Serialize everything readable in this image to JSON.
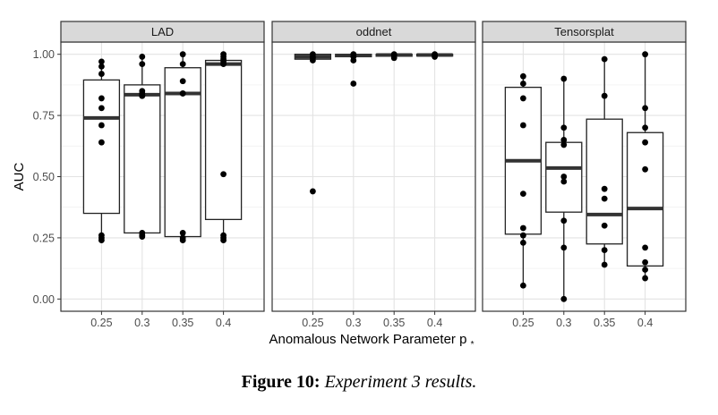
{
  "chart_data": {
    "type": "box",
    "ylabel": "AUC",
    "xlabel": "Anomalous Network Parameter p",
    "xlabel_subscript": "*",
    "categories": [
      "0.25",
      "0.3",
      "0.35",
      "0.4"
    ],
    "ylim": [
      -0.05,
      1.05
    ],
    "yticks": [
      0.0,
      0.25,
      0.5,
      0.75,
      1.0
    ],
    "ytick_labels": [
      "0.00",
      "0.25",
      "0.50",
      "0.75",
      "1.00"
    ],
    "grid": true,
    "panels": [
      {
        "name": "LAD",
        "boxes": [
          {
            "x": "0.25",
            "q1": 0.35,
            "median": 0.74,
            "q3": 0.895,
            "whisker_low": 0.24,
            "whisker_high": 0.97,
            "points": [
              0.97,
              0.95,
              0.92,
              0.82,
              0.78,
              0.71,
              0.64,
              0.26,
              0.25,
              0.24
            ]
          },
          {
            "x": "0.3",
            "q1": 0.27,
            "median": 0.835,
            "q3": 0.875,
            "whisker_low": 0.255,
            "whisker_high": 0.99,
            "points": [
              0.99,
              0.96,
              0.85,
              0.84,
              0.83,
              0.83,
              0.27,
              0.26,
              0.255
            ]
          },
          {
            "x": "0.35",
            "q1": 0.255,
            "median": 0.84,
            "q3": 0.945,
            "whisker_low": 0.24,
            "whisker_high": 1.0,
            "points": [
              1.0,
              0.96,
              0.89,
              0.84,
              0.84,
              0.27,
              0.25,
              0.24
            ]
          },
          {
            "x": "0.4",
            "q1": 0.325,
            "median": 0.96,
            "q3": 0.975,
            "whisker_low": 0.24,
            "whisker_high": 1.0,
            "points": [
              1.0,
              0.99,
              0.98,
              0.97,
              0.96,
              0.51,
              0.26,
              0.25,
              0.24
            ]
          }
        ]
      },
      {
        "name": "oddnet",
        "boxes": [
          {
            "x": "0.25",
            "q1": 0.98,
            "median": 0.99,
            "q3": 1.0,
            "whisker_low": 0.975,
            "whisker_high": 1.0,
            "points": [
              1.0,
              0.99,
              0.985,
              0.975,
              0.44
            ]
          },
          {
            "x": "0.3",
            "q1": 0.99,
            "median": 0.995,
            "q3": 1.0,
            "whisker_low": 0.975,
            "whisker_high": 1.0,
            "points": [
              1.0,
              0.99,
              0.975,
              0.88
            ]
          },
          {
            "x": "0.35",
            "q1": 0.992,
            "median": 0.997,
            "q3": 1.0,
            "whisker_low": 0.985,
            "whisker_high": 1.0,
            "points": [
              1.0,
              0.995,
              0.985
            ]
          },
          {
            "x": "0.4",
            "q1": 0.993,
            "median": 0.997,
            "q3": 1.0,
            "whisker_low": 0.99,
            "whisker_high": 1.0,
            "points": [
              1.0,
              0.995,
              0.99
            ]
          }
        ]
      },
      {
        "name": "Tensorsplat",
        "boxes": [
          {
            "x": "0.25",
            "q1": 0.265,
            "median": 0.565,
            "q3": 0.865,
            "whisker_low": 0.055,
            "whisker_high": 0.91,
            "points": [
              0.91,
              0.88,
              0.82,
              0.71,
              0.43,
              0.29,
              0.26,
              0.23,
              0.055
            ]
          },
          {
            "x": "0.3",
            "q1": 0.355,
            "median": 0.535,
            "q3": 0.64,
            "whisker_low": 0.0,
            "whisker_high": 0.9,
            "points": [
              0.9,
              0.7,
              0.65,
              0.63,
              0.5,
              0.48,
              0.32,
              0.21,
              0.0
            ]
          },
          {
            "x": "0.35",
            "q1": 0.225,
            "median": 0.345,
            "q3": 0.735,
            "whisker_low": 0.14,
            "whisker_high": 0.98,
            "points": [
              0.98,
              0.83,
              0.45,
              0.41,
              0.3,
              0.2,
              0.14
            ]
          },
          {
            "x": "0.4",
            "q1": 0.135,
            "median": 0.37,
            "q3": 0.68,
            "whisker_low": 0.085,
            "whisker_high": 1.0,
            "points": [
              1.0,
              0.78,
              0.7,
              0.64,
              0.53,
              0.21,
              0.15,
              0.12,
              0.085
            ]
          }
        ]
      }
    ]
  },
  "caption": {
    "label": "Figure 10:",
    "text": "Experiment 3 results."
  }
}
